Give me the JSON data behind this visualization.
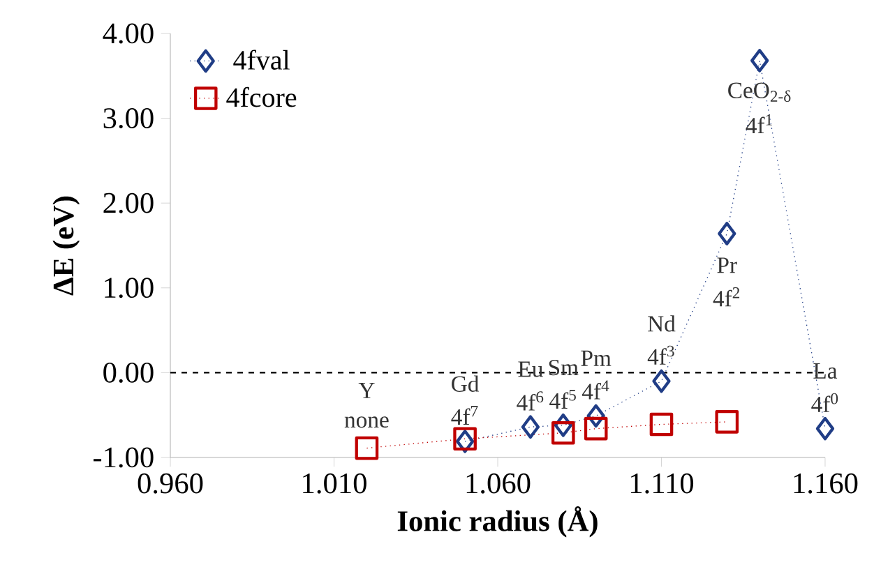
{
  "chart_data": {
    "type": "line",
    "xlabel": "Ionic radius (Å)",
    "ylabel": "ΔE (eV)",
    "xlim": [
      0.96,
      1.16
    ],
    "ylim": [
      -1,
      4
    ],
    "xticks": [
      {
        "value": 0.96,
        "label": "0.960"
      },
      {
        "value": 1.01,
        "label": "1.010"
      },
      {
        "value": 1.06,
        "label": "1.060"
      },
      {
        "value": 1.11,
        "label": "1.110"
      },
      {
        "value": 1.16,
        "label": "1.160"
      }
    ],
    "yticks": [
      {
        "value": -1,
        "label": "-1.00"
      },
      {
        "value": 0,
        "label": "0.00"
      },
      {
        "value": 1,
        "label": "1.00"
      },
      {
        "value": 2,
        "label": "2.00"
      },
      {
        "value": 3,
        "label": "3.00"
      },
      {
        "value": 4,
        "label": "4.00"
      }
    ],
    "grid": false,
    "legend": "top left",
    "line_style": "dotted",
    "series": [
      {
        "name": "4fval",
        "color": "#203d86",
        "marker": "diamond",
        "x": [
          1.05,
          1.07,
          1.08,
          1.09,
          1.11,
          1.13,
          1.14,
          1.16
        ],
        "values": [
          -0.81,
          -0.64,
          -0.62,
          -0.51,
          -0.1,
          1.64,
          3.68,
          -0.66
        ]
      },
      {
        "name": "4fcore",
        "color": "#c00000",
        "marker": "square",
        "x": [
          1.02,
          1.05,
          1.08,
          1.09,
          1.11,
          1.13
        ],
        "values": [
          -0.89,
          -0.78,
          -0.71,
          -0.66,
          -0.61,
          -0.58
        ]
      }
    ],
    "ref_lines": [
      {
        "axis": "y",
        "value": 0,
        "color": "#000000",
        "line_style": "dashed"
      }
    ],
    "annotations": [
      {
        "text": "Y",
        "x": 1.02,
        "y": -0.89
      },
      {
        "text": "none",
        "x": 1.02,
        "y": -0.89
      },
      {
        "text": "Gd",
        "x": 1.05,
        "y": -0.81
      },
      {
        "text": "4f$^{7}$",
        "x": 1.05,
        "y": -0.81
      },
      {
        "text": "Eu",
        "x": 1.07,
        "y": -0.64
      },
      {
        "text": "4f$^{6}$",
        "x": 1.07,
        "y": -0.64
      },
      {
        "text": "Sm",
        "x": 1.08,
        "y": -0.62
      },
      {
        "text": "4f$^{5}$",
        "x": 1.08,
        "y": -0.62
      },
      {
        "text": "Pm",
        "x": 1.09,
        "y": -0.51
      },
      {
        "text": "4f$^{4}$",
        "x": 1.09,
        "y": -0.51
      },
      {
        "text": "Nd",
        "x": 1.11,
        "y": -0.1
      },
      {
        "text": "4f$^{3}$",
        "x": 1.11,
        "y": -0.1
      },
      {
        "text": "Pr",
        "x": 1.13,
        "y": 1.64
      },
      {
        "text": "4f$^{2}$",
        "x": 1.13,
        "y": 1.64
      },
      {
        "text": "CeO$_{2-δ}$",
        "x": 1.14,
        "y": 3.68
      },
      {
        "text": "4f$^{1}$",
        "x": 1.14,
        "y": 3.68
      },
      {
        "text": "La",
        "x": 1.16,
        "y": -0.66
      },
      {
        "text": "4f$^{0}$",
        "x": 1.16,
        "y": -0.66
      }
    ]
  }
}
